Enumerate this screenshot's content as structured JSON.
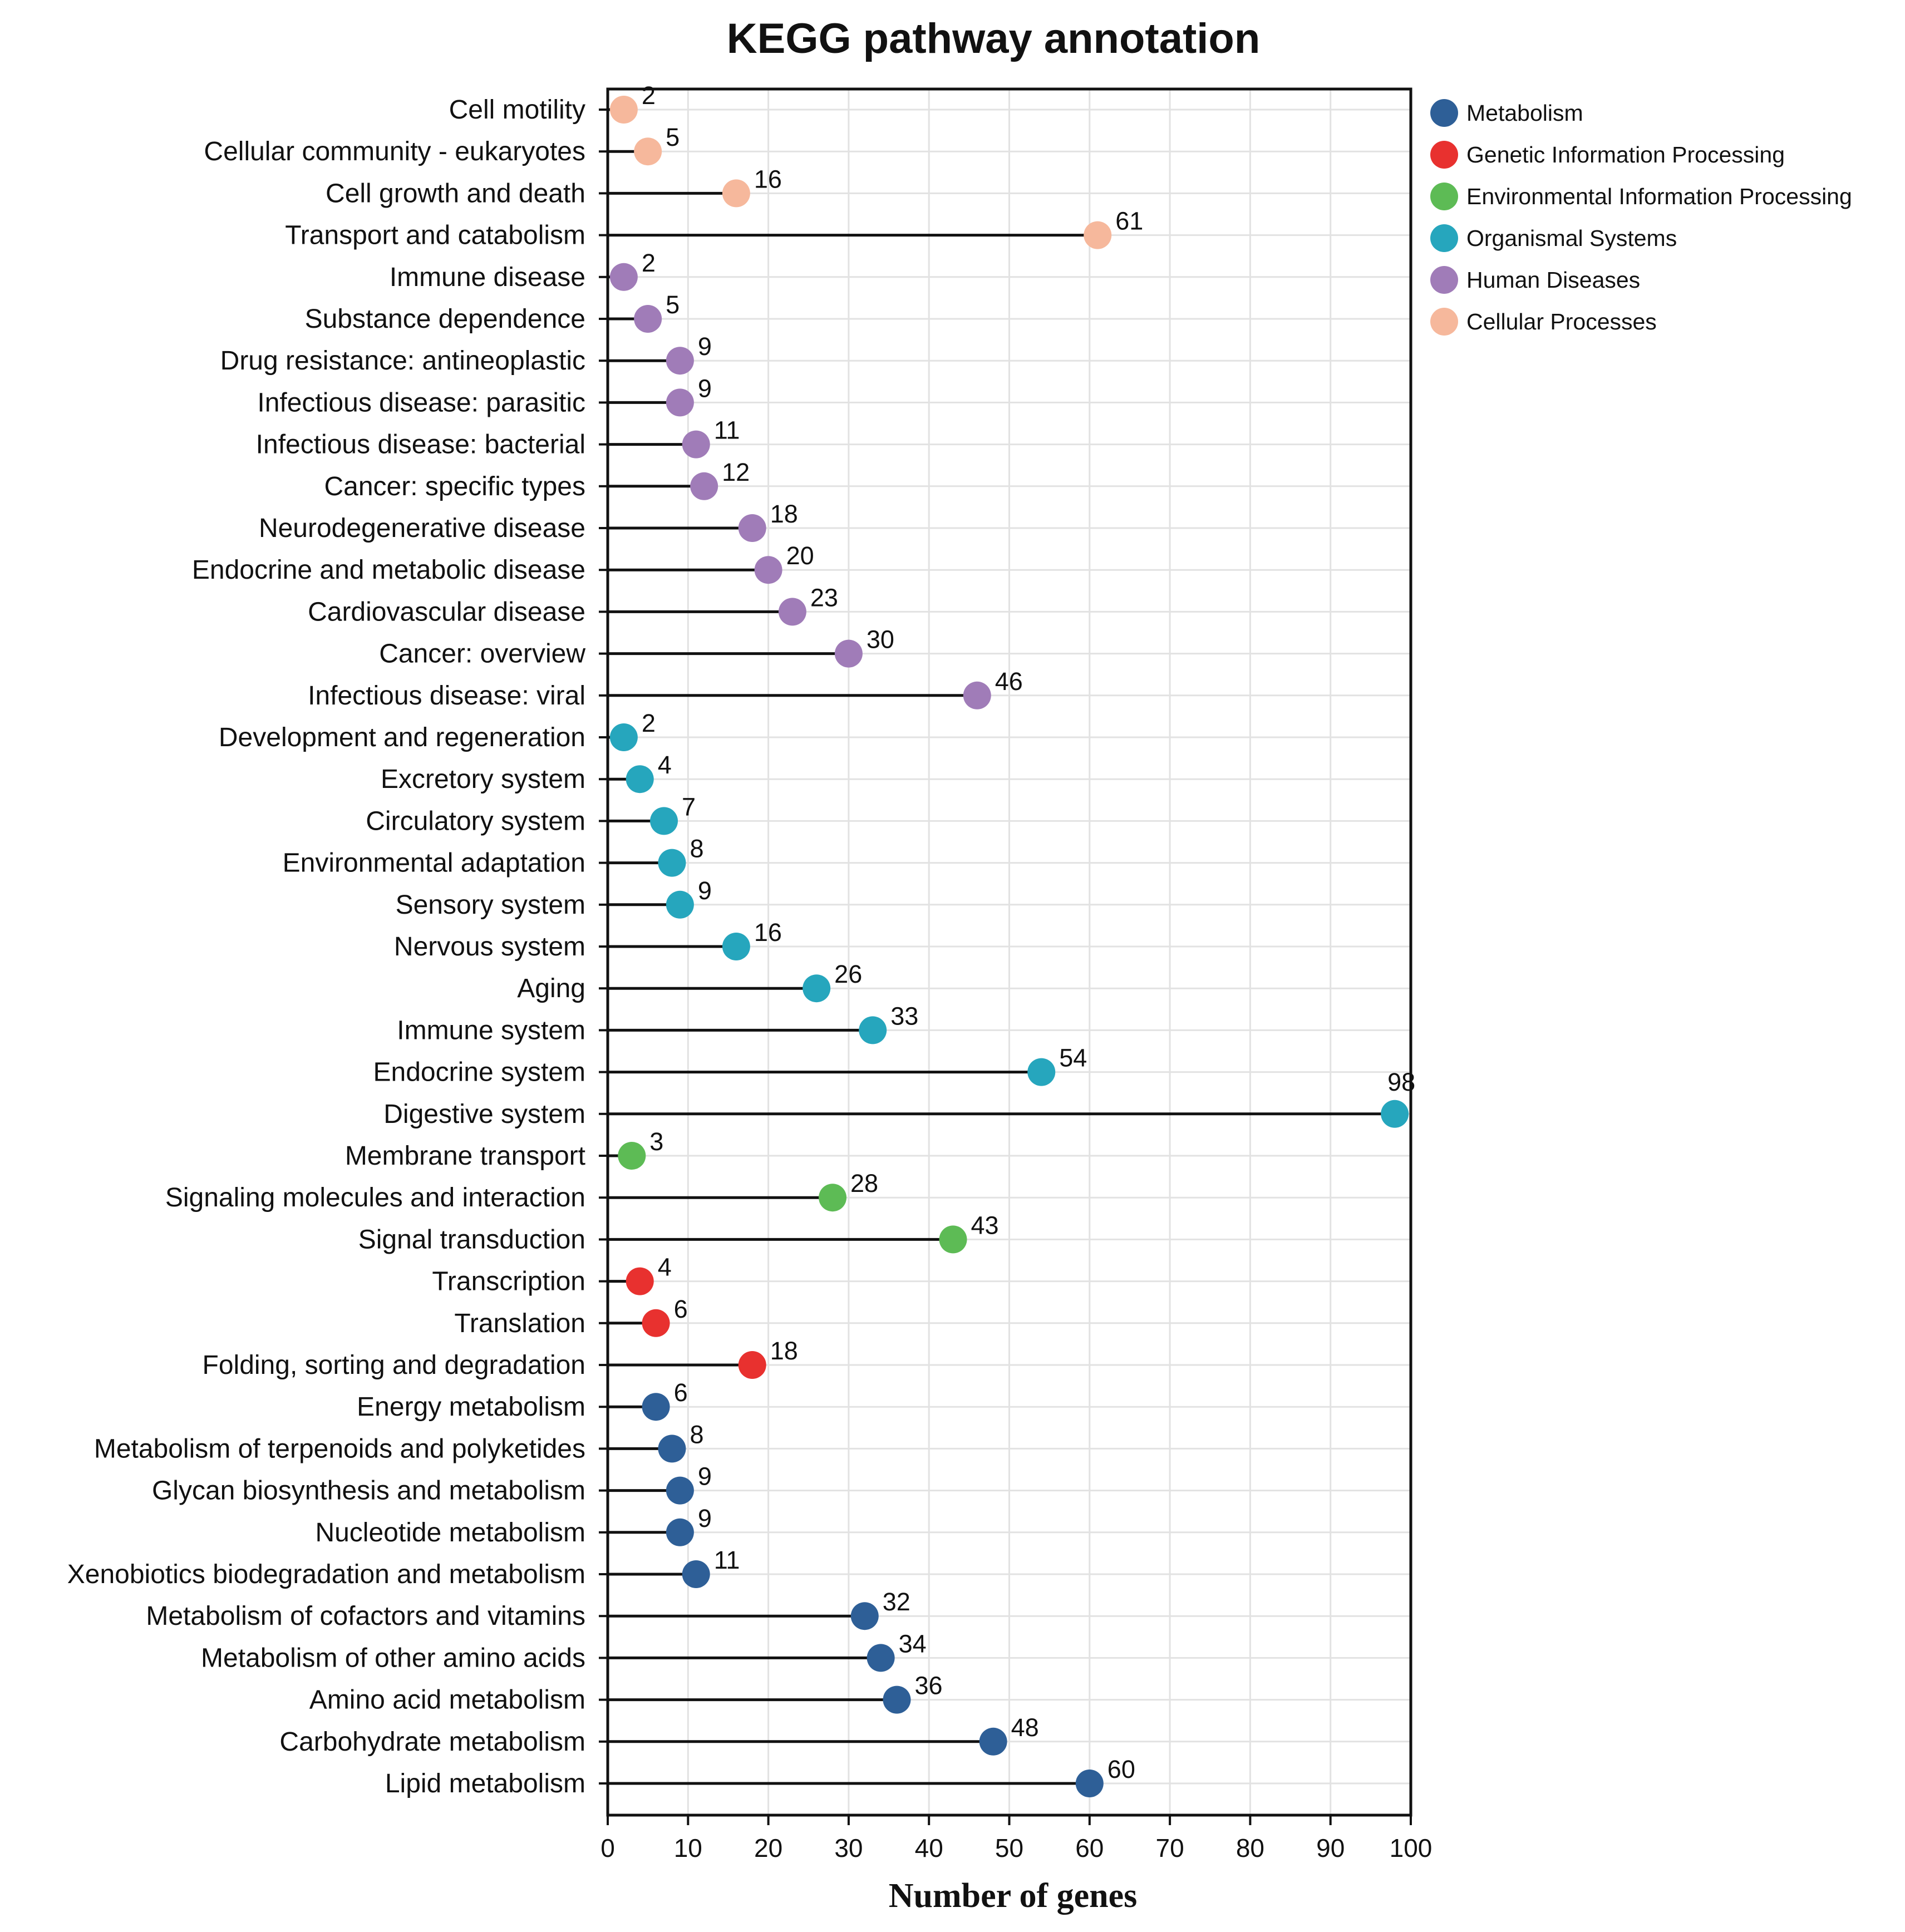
{
  "chart_data": {
    "type": "lollipop",
    "title": "KEGG pathway annotation",
    "xlabel": "Number of genes",
    "ylabel": "",
    "xlim": [
      0,
      100
    ],
    "xticks": [
      0,
      10,
      20,
      30,
      40,
      50,
      60,
      70,
      80,
      90,
      100
    ],
    "grid": true,
    "legend_position": "top-right",
    "groups": [
      {
        "name": "Metabolism",
        "color": "#2e5f97"
      },
      {
        "name": "Genetic Information Processing",
        "color": "#e8312f"
      },
      {
        "name": "Environmental Information Processing",
        "color": "#5dbb55"
      },
      {
        "name": "Organismal Systems",
        "color": "#26a6bd"
      },
      {
        "name": "Human Diseases",
        "color": "#a07cb8"
      },
      {
        "name": "Cellular Processes",
        "color": "#f6b89c"
      }
    ],
    "points": [
      {
        "category": "Cell motility",
        "value": 2,
        "group": "Cellular Processes"
      },
      {
        "category": "Cellular community - eukaryotes",
        "value": 5,
        "group": "Cellular Processes"
      },
      {
        "category": "Cell growth and death",
        "value": 16,
        "group": "Cellular Processes"
      },
      {
        "category": "Transport and catabolism",
        "value": 61,
        "group": "Cellular Processes"
      },
      {
        "category": "Immune disease",
        "value": 2,
        "group": "Human Diseases"
      },
      {
        "category": "Substance dependence",
        "value": 5,
        "group": "Human Diseases"
      },
      {
        "category": "Drug resistance: antineoplastic",
        "value": 9,
        "group": "Human Diseases"
      },
      {
        "category": "Infectious disease: parasitic",
        "value": 9,
        "group": "Human Diseases"
      },
      {
        "category": "Infectious disease: bacterial",
        "value": 11,
        "group": "Human Diseases"
      },
      {
        "category": "Cancer: specific types",
        "value": 12,
        "group": "Human Diseases"
      },
      {
        "category": "Neurodegenerative disease",
        "value": 18,
        "group": "Human Diseases"
      },
      {
        "category": "Endocrine and metabolic disease",
        "value": 20,
        "group": "Human Diseases"
      },
      {
        "category": "Cardiovascular disease",
        "value": 23,
        "group": "Human Diseases"
      },
      {
        "category": "Cancer: overview",
        "value": 30,
        "group": "Human Diseases"
      },
      {
        "category": "Infectious disease: viral",
        "value": 46,
        "group": "Human Diseases"
      },
      {
        "category": "Development and regeneration",
        "value": 2,
        "group": "Organismal Systems"
      },
      {
        "category": "Excretory system",
        "value": 4,
        "group": "Organismal Systems"
      },
      {
        "category": "Circulatory system",
        "value": 7,
        "group": "Organismal Systems"
      },
      {
        "category": "Environmental adaptation",
        "value": 8,
        "group": "Organismal Systems"
      },
      {
        "category": "Sensory system",
        "value": 9,
        "group": "Organismal Systems"
      },
      {
        "category": "Nervous system",
        "value": 16,
        "group": "Organismal Systems"
      },
      {
        "category": "Aging",
        "value": 26,
        "group": "Organismal Systems"
      },
      {
        "category": "Immune system",
        "value": 33,
        "group": "Organismal Systems"
      },
      {
        "category": "Endocrine system",
        "value": 54,
        "group": "Organismal Systems"
      },
      {
        "category": "Digestive system",
        "value": 98,
        "group": "Organismal Systems"
      },
      {
        "category": "Membrane transport",
        "value": 3,
        "group": "Environmental Information Processing"
      },
      {
        "category": "Signaling molecules and interaction",
        "value": 28,
        "group": "Environmental Information Processing"
      },
      {
        "category": "Signal transduction",
        "value": 43,
        "group": "Environmental Information Processing"
      },
      {
        "category": "Transcription",
        "value": 4,
        "group": "Genetic Information Processing"
      },
      {
        "category": "Translation",
        "value": 6,
        "group": "Genetic Information Processing"
      },
      {
        "category": "Folding, sorting and degradation",
        "value": 18,
        "group": "Genetic Information Processing"
      },
      {
        "category": "Energy metabolism",
        "value": 6,
        "group": "Metabolism"
      },
      {
        "category": "Metabolism of terpenoids and polyketides",
        "value": 8,
        "group": "Metabolism"
      },
      {
        "category": "Glycan biosynthesis and metabolism",
        "value": 9,
        "group": "Metabolism"
      },
      {
        "category": "Nucleotide metabolism",
        "value": 9,
        "group": "Metabolism"
      },
      {
        "category": "Xenobiotics biodegradation and metabolism",
        "value": 11,
        "group": "Metabolism"
      },
      {
        "category": "Metabolism of cofactors and vitamins",
        "value": 32,
        "group": "Metabolism"
      },
      {
        "category": "Metabolism of other amino acids",
        "value": 34,
        "group": "Metabolism"
      },
      {
        "category": "Amino acid metabolism",
        "value": 36,
        "group": "Metabolism"
      },
      {
        "category": "Carbohydrate metabolism",
        "value": 48,
        "group": "Metabolism"
      },
      {
        "category": "Lipid metabolism",
        "value": 60,
        "group": "Metabolism"
      }
    ]
  }
}
